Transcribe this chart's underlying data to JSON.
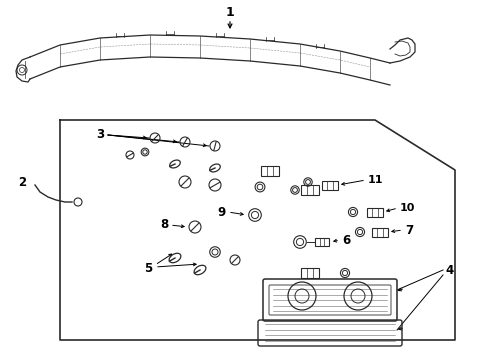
{
  "bg_color": "#ffffff",
  "line_color": "#2a2a2a",
  "text_color": "#000000",
  "label_fontsize": 7.5,
  "bold_fontsize": 8.5
}
